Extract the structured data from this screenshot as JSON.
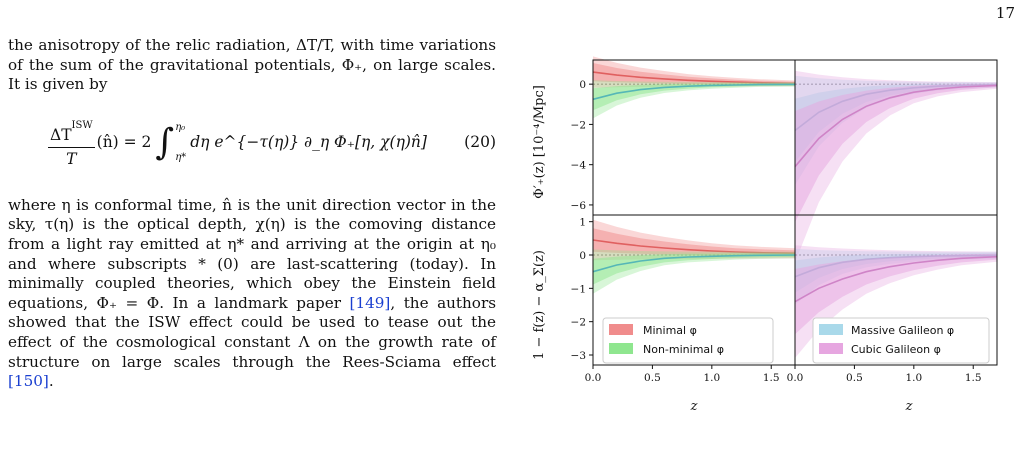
{
  "page": {
    "number": "17"
  },
  "body": {
    "para1": "the anisotropy of the relic radiation, ΔT/T, with time variations of the sum of the gravitational potentials, Φ₊, on large scales. It is given by",
    "equation": {
      "numerator": "ΔT",
      "superscript": "ISW",
      "denominator": "T",
      "lhs_arg": "(n̂) = 2",
      "upper_limit": "η₀",
      "lower_limit": "η*",
      "integrand": "dη e^{−τ(η)} ∂_η Φ₊[η, χ(η)n̂]",
      "number": "(20)"
    },
    "para2_a": "where η is conformal time, n̂ is the unit direction vector in the sky, τ(η) is the optical depth, χ(η) is the comoving distance from a light ray emitted at η* and arriving at the origin at η₀ and where subscripts * (0) are last-scattering (today). In minimally coupled theories, which obey the Einstein field equations, Φ₊ = Φ. In a landmark paper ",
    "cite1": "[149]",
    "para2_b": ", the authors showed that the ISW effect could be used to tease out the effect of the cosmological constant Λ on the growth rate of structure on large scales through the Rees-Sciama effect ",
    "cite2": "[150]",
    "para2_c": "."
  },
  "figure": {
    "top_ylabel": "Φ′₊(z)  [10⁻⁴/Mpc]",
    "bottom_ylabel": "1 − f(z) − α_Σ(z)",
    "xlabel": "z",
    "top_yticks": [
      "0",
      "−2",
      "−4",
      "−6"
    ],
    "bottom_yticks": [
      "1",
      "0",
      "−1",
      "−2",
      "−3"
    ],
    "left_xticks": [
      "0.0",
      "0.5",
      "1.0",
      "1.5"
    ],
    "right_xticks": [
      "0.0",
      "0.5",
      "1.0",
      "1.5"
    ],
    "legend_left": [
      {
        "label": "Minimal φ",
        "color": "#f08c8c"
      },
      {
        "label": "Non-minimal φ",
        "color": "#8fe68f"
      }
    ],
    "legend_right": [
      {
        "label": "Massive Galileon φ",
        "color": "#a9d9ea"
      },
      {
        "label": "Cubic Galileon φ",
        "color": "#e6a6e0"
      }
    ]
  },
  "chart_data": [
    {
      "type": "line",
      "panel": "top-left",
      "ylim": [
        -6.5,
        1.2
      ],
      "xlim": [
        0,
        1.7
      ],
      "series": [
        {
          "name": "Minimal φ",
          "x": [
            0,
            0.2,
            0.4,
            0.6,
            0.8,
            1.0,
            1.2,
            1.4,
            1.7
          ],
          "y": [
            0.6,
            0.45,
            0.34,
            0.26,
            0.19,
            0.14,
            0.1,
            0.07,
            0.04
          ]
        },
        {
          "name": "Non-minimal φ",
          "x": [
            0,
            0.2,
            0.4,
            0.6,
            0.8,
            1.0,
            1.2,
            1.4,
            1.7
          ],
          "y": [
            -0.75,
            -0.45,
            -0.27,
            -0.16,
            -0.1,
            -0.06,
            -0.04,
            -0.02,
            -0.01
          ]
        }
      ]
    },
    {
      "type": "line",
      "panel": "top-right",
      "ylim": [
        -6.5,
        1.2
      ],
      "xlim": [
        0,
        1.7
      ],
      "series": [
        {
          "name": "Massive Galileon φ",
          "x": [
            0,
            0.2,
            0.4,
            0.6,
            0.8,
            1.0,
            1.2,
            1.4,
            1.7
          ],
          "y": [
            -2.3,
            -1.4,
            -0.85,
            -0.5,
            -0.3,
            -0.18,
            -0.1,
            -0.06,
            -0.03
          ]
        },
        {
          "name": "Cubic Galileon φ",
          "x": [
            0,
            0.2,
            0.4,
            0.6,
            0.8,
            1.0,
            1.2,
            1.4,
            1.7
          ],
          "y": [
            -4.1,
            -2.7,
            -1.75,
            -1.1,
            -0.68,
            -0.4,
            -0.24,
            -0.14,
            -0.06
          ]
        }
      ]
    },
    {
      "type": "line",
      "panel": "bottom-left",
      "ylim": [
        -3.3,
        1.2
      ],
      "xlim": [
        0,
        1.7
      ],
      "series": [
        {
          "name": "Minimal φ",
          "x": [
            0,
            0.2,
            0.4,
            0.6,
            0.8,
            1.0,
            1.2,
            1.4,
            1.7
          ],
          "y": [
            0.45,
            0.35,
            0.27,
            0.21,
            0.16,
            0.12,
            0.09,
            0.07,
            0.05
          ]
        },
        {
          "name": "Non-minimal φ",
          "x": [
            0,
            0.2,
            0.4,
            0.6,
            0.8,
            1.0,
            1.2,
            1.4,
            1.7
          ],
          "y": [
            -0.5,
            -0.3,
            -0.18,
            -0.1,
            -0.06,
            -0.04,
            -0.02,
            -0.01,
            0
          ]
        }
      ]
    },
    {
      "type": "line",
      "panel": "bottom-right",
      "ylim": [
        -3.3,
        1.2
      ],
      "xlim": [
        0,
        1.7
      ],
      "series": [
        {
          "name": "Massive Galileon φ",
          "x": [
            0,
            0.2,
            0.4,
            0.6,
            0.8,
            1.0,
            1.2,
            1.4,
            1.7
          ],
          "y": [
            -0.65,
            -0.38,
            -0.22,
            -0.13,
            -0.08,
            -0.05,
            -0.03,
            -0.02,
            -0.01
          ]
        },
        {
          "name": "Cubic Galileon φ",
          "x": [
            0,
            0.2,
            0.4,
            0.6,
            0.8,
            1.0,
            1.2,
            1.4,
            1.7
          ],
          "y": [
            -1.4,
            -1.0,
            -0.72,
            -0.5,
            -0.35,
            -0.24,
            -0.16,
            -0.1,
            -0.05
          ]
        }
      ]
    }
  ]
}
